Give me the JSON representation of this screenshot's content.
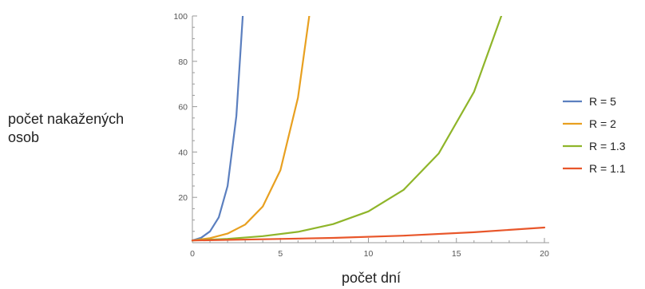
{
  "chart_data": {
    "type": "line",
    "title": "",
    "xlabel": "počet dní",
    "ylabel_lines": [
      "počet nakažených",
      "osob"
    ],
    "xlim": [
      0,
      20
    ],
    "ylim": [
      0,
      100
    ],
    "x_ticks": [
      0,
      5,
      10,
      15,
      20
    ],
    "y_ticks": [
      20,
      40,
      60,
      80,
      100
    ],
    "grid": false,
    "legend_position": "right",
    "series": [
      {
        "name": "R = 5",
        "color": "#5b7fbf",
        "points": [
          [
            0,
            1
          ],
          [
            0.5,
            2.2
          ],
          [
            1,
            5
          ],
          [
            1.5,
            11.2
          ],
          [
            2,
            25
          ],
          [
            2.5,
            55.9
          ],
          [
            2.86,
            100
          ]
        ]
      },
      {
        "name": "R = 2",
        "color": "#e8a020",
        "points": [
          [
            0,
            1
          ],
          [
            1,
            2
          ],
          [
            2,
            4
          ],
          [
            3,
            8
          ],
          [
            4,
            16
          ],
          [
            5,
            32
          ],
          [
            6,
            64
          ],
          [
            6.64,
            100
          ]
        ]
      },
      {
        "name": "R = 1.3",
        "color": "#8fb52a",
        "points": [
          [
            0,
            1
          ],
          [
            2,
            1.7
          ],
          [
            4,
            2.9
          ],
          [
            6,
            4.8
          ],
          [
            8,
            8.2
          ],
          [
            10,
            13.8
          ],
          [
            12,
            23.3
          ],
          [
            14,
            39.4
          ],
          [
            16,
            66.5
          ],
          [
            17.55,
            100
          ]
        ]
      },
      {
        "name": "R = 1.1",
        "color": "#e8562a",
        "points": [
          [
            0,
            1
          ],
          [
            4,
            1.5
          ],
          [
            8,
            2.1
          ],
          [
            12,
            3.1
          ],
          [
            16,
            4.6
          ],
          [
            20,
            6.7
          ]
        ]
      }
    ]
  }
}
